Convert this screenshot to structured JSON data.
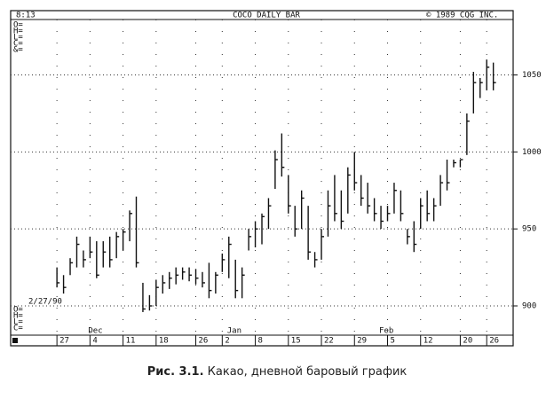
{
  "chart_data": {
    "type": "ohlc",
    "time": "8:13",
    "title": "COCO DAILY BAR",
    "copyright": "© 1989 CQG INC.",
    "readout_top": [
      "O=",
      "H=",
      "L=",
      "C=",
      "&="
    ],
    "readout_bottom": [
      "O=",
      "H=",
      "L=",
      "C="
    ],
    "date_label": "2/27/90",
    "color": "#111111",
    "x": [
      0,
      1,
      2,
      3,
      4,
      5,
      6,
      7,
      8,
      9,
      10,
      11,
      12,
      13,
      14,
      15,
      16,
      17,
      18,
      19,
      20,
      21,
      22,
      23,
      24,
      25,
      26,
      27,
      28,
      29,
      30,
      31,
      32,
      33,
      34,
      35,
      36,
      37,
      38,
      39,
      40,
      41,
      42,
      43,
      44,
      45,
      46,
      47,
      48,
      49,
      50,
      51,
      52,
      53,
      54,
      55,
      56,
      57,
      58,
      59,
      60,
      61,
      62,
      63,
      64,
      65,
      66
    ],
    "high": [
      925,
      920,
      931,
      945,
      936,
      945,
      942,
      942,
      945,
      948,
      950,
      962,
      971,
      915,
      907,
      917,
      920,
      922,
      925,
      925,
      925,
      924,
      922,
      928,
      922,
      934,
      945,
      930,
      925,
      950,
      955,
      960,
      970,
      1001,
      1012,
      985,
      965,
      975,
      965,
      935,
      950,
      975,
      985,
      975,
      990,
      1000,
      985,
      980,
      970,
      965,
      965,
      980,
      975,
      950,
      955,
      970,
      975,
      970,
      985,
      995,
      995,
      995,
      1025,
      1052,
      1048,
      1060,
      1058
    ],
    "low": [
      912,
      908,
      920,
      925,
      925,
      931,
      918,
      925,
      925,
      931,
      936,
      942,
      925,
      896,
      897,
      900,
      908,
      911,
      914,
      917,
      916,
      914,
      912,
      905,
      908,
      922,
      918,
      905,
      905,
      936,
      938,
      940,
      950,
      976,
      984,
      960,
      945,
      950,
      930,
      925,
      930,
      945,
      955,
      950,
      960,
      975,
      965,
      960,
      955,
      950,
      955,
      960,
      955,
      940,
      935,
      950,
      955,
      955,
      965,
      975,
      990,
      990,
      998,
      1025,
      1035,
      1040,
      1040
    ],
    "close": [
      915,
      912,
      928,
      940,
      930,
      935,
      920,
      935,
      930,
      945,
      948,
      960,
      928,
      898,
      900,
      912,
      915,
      918,
      920,
      922,
      920,
      918,
      915,
      910,
      920,
      930,
      940,
      910,
      920,
      945,
      950,
      958,
      965,
      995,
      990,
      965,
      950,
      970,
      935,
      930,
      945,
      965,
      960,
      955,
      985,
      980,
      970,
      965,
      960,
      955,
      960,
      975,
      960,
      945,
      940,
      965,
      960,
      965,
      980,
      980,
      993,
      995,
      1020,
      1045,
      1045,
      1055,
      1045
    ],
    "xlim": [
      -7,
      69
    ],
    "xticks": [
      {
        "value": 0,
        "label": "27"
      },
      {
        "value": 5,
        "label": "4"
      },
      {
        "value": 10,
        "label": "11"
      },
      {
        "value": 15,
        "label": "18"
      },
      {
        "value": 21,
        "label": "26"
      },
      {
        "value": 25,
        "label": "2"
      },
      {
        "value": 30,
        "label": "8"
      },
      {
        "value": 35,
        "label": "15"
      },
      {
        "value": 40,
        "label": "22"
      },
      {
        "value": 45,
        "label": "29"
      },
      {
        "value": 50,
        "label": "5"
      },
      {
        "value": 55,
        "label": "12"
      },
      {
        "value": 61,
        "label": "20"
      },
      {
        "value": 65,
        "label": "26"
      }
    ],
    "month_labels": [
      {
        "value": 5,
        "label": "Dec"
      },
      {
        "value": 26,
        "label": "Jan"
      },
      {
        "value": 49,
        "label": "Feb"
      }
    ],
    "ylim": [
      881,
      1086
    ],
    "yticks": [
      900,
      950,
      1000,
      1050
    ],
    "grid": true
  },
  "caption": {
    "label": "Рис. 3.1.",
    "text": "Какао, дневной баровый график"
  }
}
